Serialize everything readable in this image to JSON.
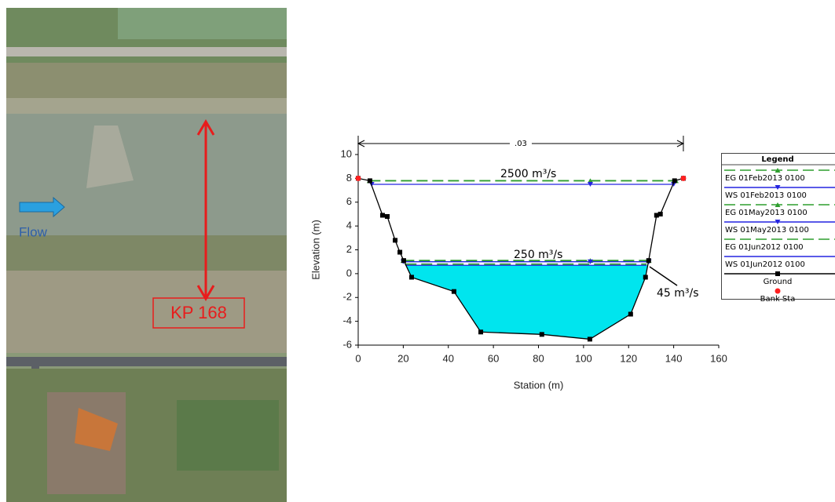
{
  "photo": {
    "flow_label": "Flow",
    "location_label": "KP 168"
  },
  "chart_data": {
    "type": "cross-section",
    "xlabel": "Station (m)",
    "ylabel": "Elevation (m)",
    "xlim": [
      0,
      160
    ],
    "ylim": [
      -6,
      10
    ],
    "xticks": [
      0,
      20,
      40,
      60,
      80,
      100,
      120,
      140,
      160
    ],
    "yticks": [
      -6,
      -4,
      -2,
      0,
      2,
      4,
      6,
      8,
      10
    ],
    "manning_label": ".03",
    "legend_title": "Legend",
    "annotations": [
      "2500 m³/s",
      "250 m³/s",
      "45 m³/s"
    ],
    "series": [
      {
        "name": "EG 01Feb2013 0100",
        "color": "#2e9e2e",
        "style": "dashed",
        "marker": "triangle-up",
        "x": [
          5,
          103,
          141
        ],
        "values": [
          7.8,
          7.8,
          7.8
        ]
      },
      {
        "name": "WS 01Feb2013 0100",
        "color": "#2424e0",
        "style": "solid",
        "marker": "triangle-down",
        "x": [
          6,
          103,
          140
        ],
        "values": [
          7.5,
          7.5,
          7.5
        ]
      },
      {
        "name": "EG 01May2013 0100",
        "color": "#2e9e2e",
        "style": "dashed",
        "marker": "triangle-up",
        "x": [
          20,
          103,
          129
        ],
        "values": [
          1.1,
          1.1,
          1.1
        ]
      },
      {
        "name": "WS 01May2013 0100",
        "color": "#2424e0",
        "style": "solid",
        "marker": "triangle-down",
        "x": [
          20,
          103,
          129
        ],
        "values": [
          1.0,
          1.0,
          1.0
        ]
      },
      {
        "name": "EG 01Jun2012 0100",
        "color": "#2e9e2e",
        "style": "dashed",
        "marker": "none",
        "x": [
          21,
          128
        ],
        "values": [
          0.8,
          0.8
        ]
      },
      {
        "name": "WS 01Jun2012 0100",
        "color": "#2424e0",
        "style": "solid",
        "marker": "none",
        "fill": "#00e5ee",
        "x": [
          21,
          128
        ],
        "values": [
          0.7,
          0.7
        ]
      },
      {
        "name": "Ground",
        "color": "#000000",
        "style": "solid",
        "marker": "square",
        "x": [
          0,
          5.2,
          10.8,
          12.9,
          16.4,
          18.5,
          20.2,
          23.7,
          42.5,
          54.4,
          81.5,
          102.8,
          120.9,
          127.5,
          128.9,
          132.4,
          134.1,
          140.4,
          144.3
        ],
        "values": [
          8.0,
          7.8,
          4.9,
          4.8,
          2.8,
          1.8,
          1.1,
          -0.3,
          -1.5,
          -4.9,
          -5.1,
          -5.5,
          -3.4,
          -0.3,
          1.1,
          4.9,
          5.0,
          7.8,
          8.0
        ]
      },
      {
        "name": "Bank Sta",
        "color": "#ff2020",
        "style": "none",
        "marker": "circle",
        "x": [
          0,
          144.3
        ],
        "values": [
          8.0,
          8.0
        ]
      }
    ]
  }
}
